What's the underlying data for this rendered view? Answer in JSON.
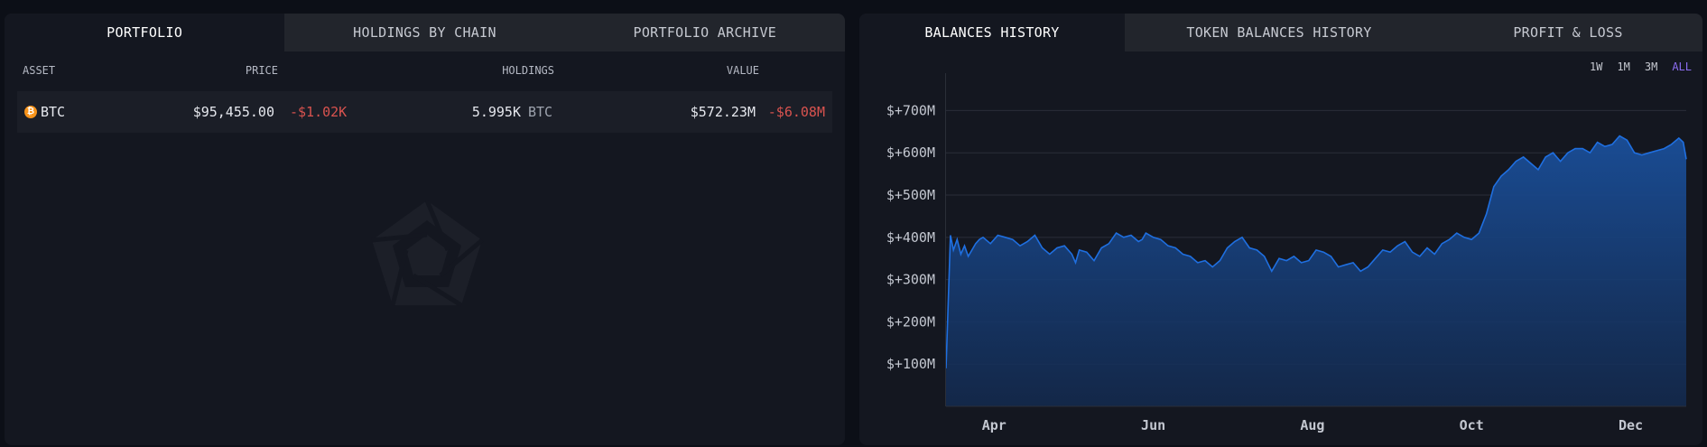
{
  "left_tabs": [
    "PORTFOLIO",
    "HOLDINGS BY CHAIN",
    "PORTFOLIO ARCHIVE"
  ],
  "table": {
    "headers": {
      "asset": "ASSET",
      "price": "PRICE",
      "holdings": "HOLDINGS",
      "value": "VALUE"
    },
    "rows": [
      {
        "icon": "bitcoin-icon",
        "icon_glyph": "₿",
        "asset": "BTC",
        "price": "$95,455.00",
        "price_change": "-$1.02K",
        "holdings": "5.995K",
        "holdings_unit": "BTC",
        "value": "$572.23M",
        "value_change": "-$6.08M"
      }
    ]
  },
  "watermark_icon": "arkham-logo-icon",
  "right_tabs": [
    "BALANCES HISTORY",
    "TOKEN BALANCES HISTORY",
    "PROFIT & LOSS"
  ],
  "ranges": [
    "1W",
    "1M",
    "3M",
    "ALL"
  ],
  "active_range": "ALL",
  "colors": {
    "accent": "#8b6cf0",
    "negative": "#d9534f",
    "line": "#1f6fe0",
    "btc": "#f7931a"
  },
  "chart_data": {
    "type": "area",
    "ylim": [
      0,
      780
    ],
    "yticks": [
      100,
      200,
      300,
      400,
      500,
      600,
      700
    ],
    "ytick_labels": [
      "$+100M",
      "$+200M",
      "$+300M",
      "$+400M",
      "$+500M",
      "$+600M",
      "$+700M"
    ],
    "xlim": [
      0,
      100
    ],
    "xticks": [
      6.5,
      28,
      49.5,
      71,
      92.5
    ],
    "xtick_labels": [
      "Apr",
      "Jun",
      "Aug",
      "Oct",
      "Dec"
    ],
    "grid": true,
    "series": [
      {
        "x": [
          0,
          0.3,
          0.6,
          1,
          1.5,
          2,
          2.5,
          3,
          3.5,
          4,
          4.5,
          5,
          6,
          7,
          8,
          9,
          10,
          11,
          12,
          13,
          14,
          15,
          16,
          17,
          17.5,
          18,
          19,
          20,
          21,
          22,
          23,
          24,
          25,
          26,
          26.5,
          27,
          28,
          29,
          30,
          31,
          32,
          33,
          34,
          35,
          36,
          37,
          38,
          39,
          40,
          41,
          42,
          43,
          44,
          45,
          46,
          47,
          48,
          49,
          50,
          51,
          52,
          53,
          54,
          55,
          56,
          57,
          58,
          59,
          60,
          61,
          62,
          63,
          64,
          65,
          66,
          67,
          68,
          69,
          70,
          71,
          72,
          73,
          74,
          75,
          76,
          77,
          78,
          79,
          80,
          81,
          82,
          83,
          84,
          85,
          86,
          87,
          88,
          89,
          90,
          91,
          92,
          93,
          94,
          95,
          96,
          97,
          98,
          99,
          99.6,
          100
        ],
        "y": [
          90,
          250,
          405,
          370,
          395,
          360,
          380,
          355,
          370,
          385,
          395,
          400,
          385,
          405,
          400,
          395,
          380,
          390,
          405,
          375,
          360,
          375,
          380,
          360,
          340,
          370,
          365,
          345,
          375,
          385,
          410,
          400,
          405,
          390,
          395,
          410,
          400,
          395,
          380,
          375,
          360,
          355,
          340,
          345,
          330,
          345,
          375,
          390,
          400,
          375,
          370,
          355,
          320,
          350,
          345,
          355,
          340,
          345,
          370,
          365,
          355,
          330,
          335,
          340,
          320,
          330,
          350,
          370,
          365,
          380,
          390,
          365,
          355,
          375,
          360,
          385,
          395,
          410,
          400,
          395,
          410,
          455,
          520,
          545,
          560,
          580,
          590,
          575,
          560,
          590,
          600,
          580,
          600,
          610,
          610,
          600,
          625,
          615,
          620,
          640,
          630,
          600,
          595,
          600,
          605,
          610,
          620,
          635,
          625,
          585
        ]
      }
    ]
  }
}
